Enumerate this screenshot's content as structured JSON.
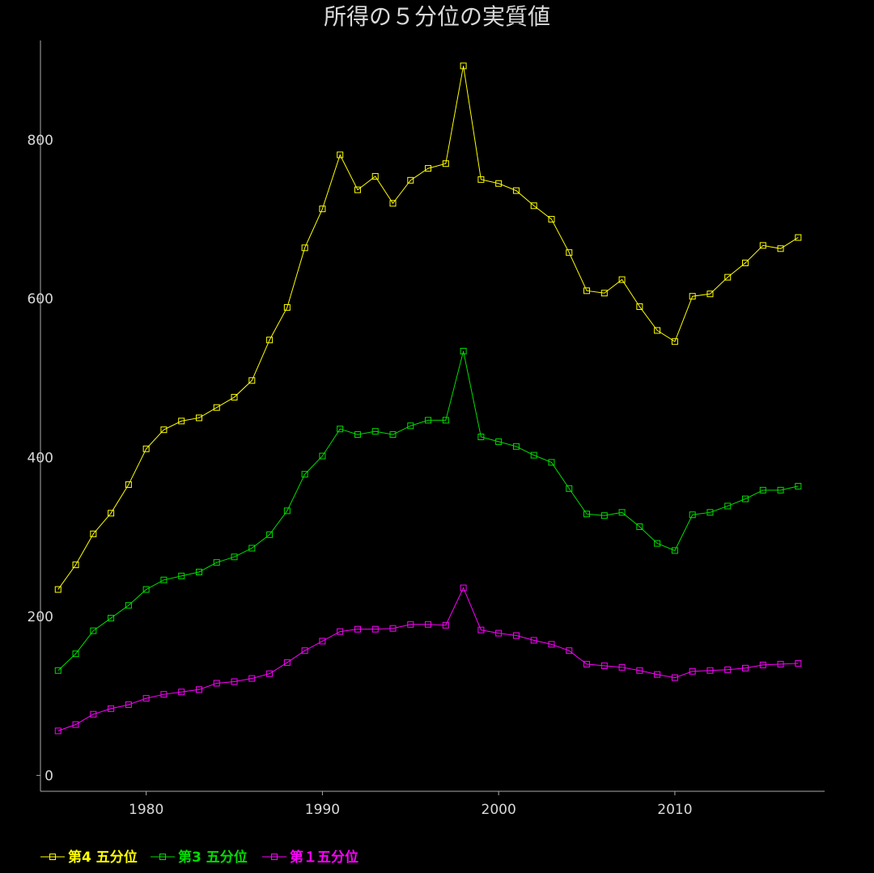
{
  "chart_data": {
    "type": "line",
    "title": "所得の５分位の実質値",
    "xlabel": "",
    "ylabel": "",
    "xlim": [
      1974,
      2018.5
    ],
    "ylim": [
      -20,
      925
    ],
    "x_ticks": [
      1980,
      1990,
      2000,
      2010
    ],
    "y_ticks": [
      0,
      200,
      400,
      600,
      800
    ],
    "grid": false,
    "legend": "bottom-left",
    "x": [
      1975,
      1976,
      1977,
      1978,
      1979,
      1980,
      1981,
      1982,
      1983,
      1984,
      1985,
      1986,
      1987,
      1988,
      1989,
      1990,
      1991,
      1992,
      1993,
      1994,
      1995,
      1996,
      1997,
      1998,
      1999,
      2000,
      2001,
      2002,
      2003,
      2004,
      2005,
      2006,
      2007,
      2008,
      2009,
      2010,
      2011,
      2012,
      2013,
      2014,
      2015,
      2016,
      2017
    ],
    "series": [
      {
        "name": "第4 五分位",
        "color": "#ffff00",
        "values": [
          234,
          265,
          304,
          330,
          366,
          411,
          435,
          446,
          450,
          463,
          476,
          497,
          548,
          589,
          664,
          713,
          781,
          737,
          754,
          720,
          749,
          764,
          770,
          893,
          750,
          745,
          736,
          717,
          700,
          658,
          610,
          607,
          624,
          590,
          560,
          546,
          603,
          606,
          627,
          645,
          667,
          663,
          677
        ]
      },
      {
        "name": "第3 五分位",
        "color": "#00dd00",
        "values": [
          132,
          153,
          182,
          198,
          214,
          234,
          246,
          251,
          256,
          268,
          275,
          286,
          303,
          333,
          379,
          402,
          436,
          429,
          433,
          429,
          440,
          447,
          447,
          534,
          426,
          420,
          414,
          403,
          394,
          361,
          329,
          327,
          331,
          313,
          292,
          283,
          328,
          331,
          339,
          348,
          359,
          359,
          364
        ]
      },
      {
        "name": "第１五分位",
        "color": "#ff00ff",
        "values": [
          56,
          64,
          77,
          84,
          89,
          97,
          102,
          105,
          108,
          116,
          118,
          122,
          128,
          142,
          157,
          169,
          181,
          184,
          184,
          185,
          190,
          190,
          189,
          236,
          183,
          179,
          176,
          170,
          165,
          157,
          140,
          138,
          136,
          132,
          127,
          123,
          131,
          132,
          133,
          135,
          139,
          140,
          141
        ]
      }
    ]
  }
}
